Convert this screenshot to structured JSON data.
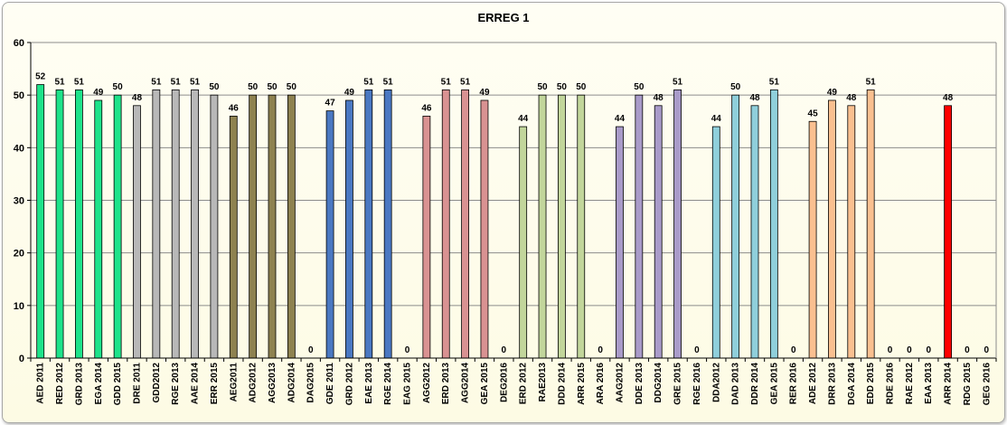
{
  "chart_data": {
    "type": "bar",
    "title": "ERREG 1",
    "ylim": [
      0,
      60
    ],
    "yticks": [
      0,
      10,
      20,
      30,
      40,
      50,
      60
    ],
    "grid": true,
    "legend": "none",
    "categories": [
      "AED 2011",
      "RED 2012",
      "GRD 2013",
      "EGA 2014",
      "GDD 2015",
      "DRE 2011",
      "GDD2012",
      "RGE 2013",
      "AAE 2014",
      "ERR 2015",
      "AEG2011",
      "ADG2012",
      "AGG2013",
      "ADG2014",
      "DAG2015",
      "GDE 2011",
      "GRD 2012",
      "EAE 2013",
      "RGE 2014",
      "EAG 2015",
      "AGG2012",
      "ERD 2013",
      "AGG2014",
      "GEA 2015",
      "DEG2016",
      "ERD 2012",
      "RAE2013",
      "DDD 2014",
      "ARR 2015",
      "ARA 2016",
      "AAG2012",
      "DDE 2013",
      "DDG2014",
      "GRE 2015",
      "RGE 2016",
      "DDA2012",
      "DAD 2013",
      "DDR 2014",
      "GEA 2015",
      "RER 2016",
      "ADE 2012",
      "DRR 2013",
      "DGA 2014",
      "EDD 2015",
      "RDE 2016",
      "RAE 2012",
      "EAA 2013",
      "ARR 2014",
      "RDG 2015",
      "GEG 2016"
    ],
    "values": [
      52,
      51,
      51,
      49,
      50,
      48,
      51,
      51,
      51,
      50,
      46,
      50,
      50,
      50,
      0,
      47,
      49,
      51,
      51,
      0,
      46,
      51,
      51,
      49,
      0,
      44,
      50,
      50,
      50,
      0,
      44,
      50,
      48,
      51,
      0,
      44,
      50,
      48,
      51,
      0,
      45,
      49,
      48,
      51,
      0,
      0,
      0,
      48,
      0,
      0
    ],
    "colors": [
      "#1ee38a",
      "#1ee38a",
      "#1ee38a",
      "#1ee38a",
      "#1ee38a",
      "#b8b8b8",
      "#b8b8b8",
      "#b8b8b8",
      "#b8b8b8",
      "#b8b8b8",
      "#8e8250",
      "#8e8250",
      "#8e8250",
      "#8e8250",
      "#8e8250",
      "#4a78c2",
      "#4a78c2",
      "#4a78c2",
      "#4a78c2",
      "#4a78c2",
      "#d99292",
      "#d99292",
      "#d99292",
      "#d99292",
      "#d99292",
      "#c2d69b",
      "#c2d69b",
      "#c2d69b",
      "#c2d69b",
      "#c2d69b",
      "#a99bc9",
      "#a99bc9",
      "#a99bc9",
      "#a99bc9",
      "#a99bc9",
      "#8fcfdb",
      "#8fcfdb",
      "#8fcfdb",
      "#8fcfdb",
      "#8fcfdb",
      "#fac090",
      "#fac090",
      "#fac090",
      "#fac090",
      "#fac090",
      "#ff0000",
      "#ff0000",
      "#ff0000",
      "#ff0000",
      "#ff0000"
    ]
  }
}
